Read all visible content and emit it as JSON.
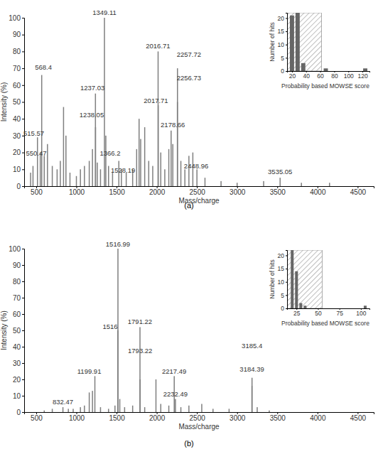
{
  "chart_data": [
    {
      "type": "bar",
      "title": "(a)",
      "x_label": "Mass/charge",
      "y_label": "Intensity (%)",
      "color": "#7f7f7f",
      "grid": false,
      "x": [
        430,
        460,
        515.57,
        550.47,
        568.4,
        600,
        640,
        700,
        760,
        800,
        840,
        870,
        920,
        1000,
        1050,
        1100,
        1160,
        1200,
        1237.03,
        1238.05,
        1260,
        1300,
        1349.11,
        1366.2,
        1400,
        1450,
        1528.19,
        1560,
        1620,
        1700,
        1750,
        1780,
        1800,
        1850,
        1900,
        1950,
        2016.71,
        2017.71,
        2050,
        2100,
        2150,
        2178.66,
        2200,
        2256.73,
        2257.72,
        2300,
        2350,
        2400,
        2448.96,
        2500,
        2600,
        2800,
        3000,
        3330,
        3535.05,
        3800,
        4150
      ],
      "values": [
        8,
        12,
        29,
        20,
        66,
        18,
        25,
        12,
        10,
        15,
        47,
        30,
        8,
        6,
        10,
        12,
        15,
        22,
        55,
        35,
        14,
        10,
        100,
        30,
        12,
        8,
        15,
        10,
        8,
        10,
        22,
        40,
        28,
        35,
        15,
        12,
        80,
        48,
        20,
        10,
        22,
        33,
        25,
        50,
        70,
        15,
        10,
        18,
        20,
        10,
        5,
        3,
        2,
        3,
        5,
        2,
        2
      ],
      "xlim": [
        350,
        4700
      ],
      "xticks": [
        500,
        1000,
        1500,
        2000,
        2500,
        3000,
        3500,
        4000,
        4500
      ],
      "ylim": [
        0,
        100
      ],
      "yticks": [
        0,
        10,
        20,
        30,
        40,
        50,
        60,
        70,
        80,
        90,
        100
      ],
      "annotations": [
        {
          "text": "515.57",
          "x": 470,
          "y": 30
        },
        {
          "text": "550.47",
          "x": 500,
          "y": 18
        },
        {
          "text": "568.4",
          "x": 590,
          "y": 69
        },
        {
          "text": "1237.03",
          "x": 1200,
          "y": 57
        },
        {
          "text": "1238.05",
          "x": 1190,
          "y": 41
        },
        {
          "text": "1349.11",
          "x": 1349,
          "y": 101.5
        },
        {
          "text": "1366.2",
          "x": 1420,
          "y": 18
        },
        {
          "text": "1528.19",
          "x": 1580,
          "y": 8
        },
        {
          "text": "2016.71",
          "x": 2016,
          "y": 82
        },
        {
          "text": "2017.71",
          "x": 1990,
          "y": 49.5
        },
        {
          "text": "2257.72",
          "x": 2400,
          "y": 77
        },
        {
          "text": "2256.73",
          "x": 2400,
          "y": 63
        },
        {
          "text": "2178.66",
          "x": 2200,
          "y": 35
        },
        {
          "text": "2448.96",
          "x": 2490,
          "y": 10.5
        },
        {
          "text": "3535.05",
          "x": 3535,
          "y": 7
        }
      ]
    },
    {
      "type": "histogram",
      "x_label": "Probability based MOWSE score",
      "y_label": "Number of hits",
      "color": "#666666",
      "bins": [
        16,
        24,
        32,
        40,
        48,
        56,
        64,
        72,
        80,
        88,
        96,
        104,
        112,
        120,
        128
      ],
      "values": [
        21,
        22,
        3,
        0,
        0,
        0,
        1,
        0,
        0,
        0,
        0,
        0,
        0,
        1
      ],
      "threshold": 62,
      "xlim": [
        13,
        130
      ],
      "xticks": [
        20,
        40,
        60,
        80,
        100,
        120
      ],
      "ylim": [
        0,
        22
      ],
      "yticks": [
        0,
        5,
        10,
        15,
        20
      ]
    },
    {
      "type": "bar",
      "title": "(b)",
      "x_label": "Mass/charge",
      "y_label": "Intensity (%)",
      "color": "#7f7f7f",
      "grid": false,
      "x": [
        600,
        700,
        832.47,
        900,
        960,
        1050,
        1100,
        1160,
        1199.91,
        1230,
        1300,
        1400,
        1480,
        1516,
        1516.99,
        1540,
        1600,
        1700,
        1791.22,
        1793.22,
        1850,
        1990,
        2050,
        2150,
        2217.49,
        2232.49,
        2300,
        2400,
        2560,
        2700,
        2900,
        3184.39,
        3185.4,
        3250,
        3400
      ],
      "values": [
        1,
        2,
        3,
        2,
        2,
        3,
        4,
        12,
        13,
        22,
        3,
        2,
        4,
        50,
        100,
        8,
        3,
        4,
        52,
        20,
        3,
        20,
        5,
        4,
        22,
        8,
        3,
        4,
        5,
        2,
        2,
        16,
        21,
        3,
        1
      ],
      "xlim": [
        350,
        4700
      ],
      "xticks": [
        500,
        1000,
        1500,
        2000,
        2500,
        3000,
        3500,
        4000,
        4500
      ],
      "ylim": [
        0,
        100
      ],
      "yticks": [
        0,
        10,
        20,
        30,
        40,
        50,
        60,
        70,
        80,
        90,
        100
      ],
      "annotations": [
        {
          "text": "832.47",
          "x": 832,
          "y": 5
        },
        {
          "text": "1199.91",
          "x": 1160,
          "y": 23.5
        },
        {
          "text": "1516",
          "x": 1420,
          "y": 51
        },
        {
          "text": "1516.99",
          "x": 1517,
          "y": 101.5
        },
        {
          "text": "1791.22",
          "x": 1791,
          "y": 54
        },
        {
          "text": "1793.22",
          "x": 1793,
          "y": 36
        },
        {
          "text": "2217.49",
          "x": 2217,
          "y": 23.5
        },
        {
          "text": "2232.49",
          "x": 2232,
          "y": 9.5
        },
        {
          "text": "3185.4",
          "x": 3185,
          "y": 39
        },
        {
          "text": "3184.39",
          "x": 3184,
          "y": 25
        }
      ]
    },
    {
      "type": "histogram",
      "x_label": "Probability based MOWSE score",
      "y_label": "Number of hits",
      "color": "#666666",
      "bins": [
        17.5,
        22.5,
        27.5,
        32.5,
        37.5,
        42.5,
        47.5,
        52.5,
        57.5,
        62.5,
        67.5,
        72.5,
        77.5,
        82.5,
        87.5,
        92.5,
        97.5,
        102.5,
        107.5
      ],
      "values": [
        22,
        14,
        2,
        1,
        0,
        0,
        0,
        0,
        0,
        0,
        0,
        0,
        0,
        0,
        0,
        0,
        0,
        1
      ],
      "threshold": 55,
      "xlim": [
        14,
        110
      ],
      "xticks": [
        25,
        50,
        75,
        100
      ],
      "ylim": [
        0,
        22
      ],
      "yticks": [
        0,
        5,
        10,
        15,
        20
      ]
    }
  ]
}
